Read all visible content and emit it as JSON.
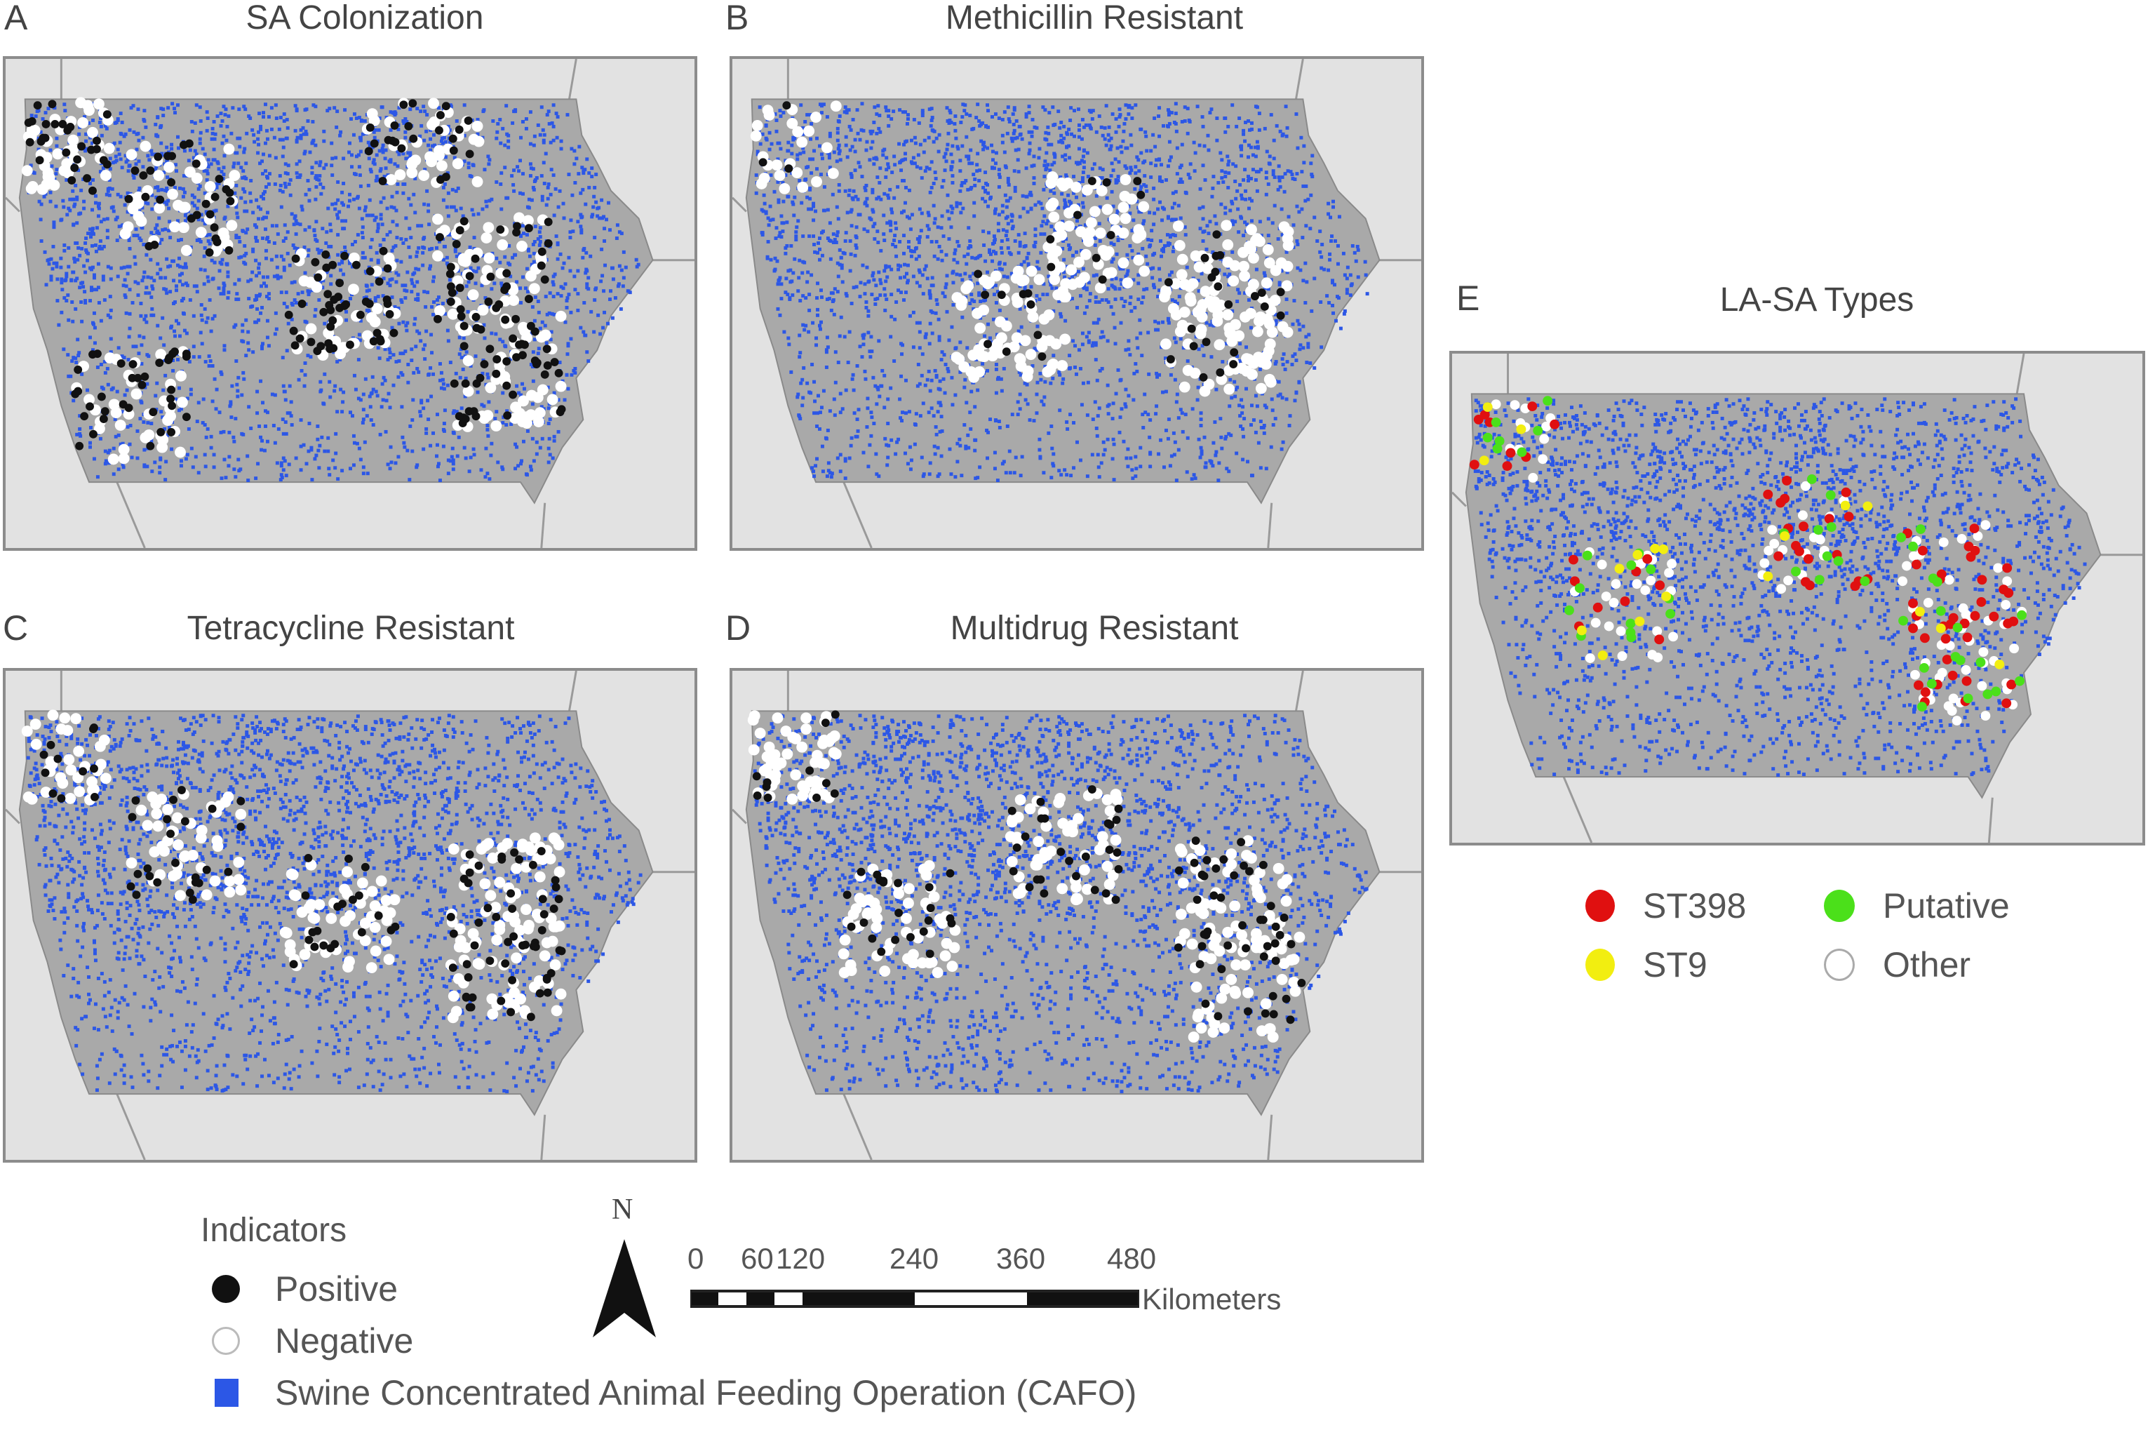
{
  "panels": [
    {
      "id": "A",
      "letter": "A",
      "title": "SA Colonization"
    },
    {
      "id": "B",
      "letter": "B",
      "title": "Methicillin Resistant"
    },
    {
      "id": "C",
      "letter": "C",
      "title": "Tetracycline Resistant"
    },
    {
      "id": "D",
      "letter": "D",
      "title": "Multidrug Resistant"
    },
    {
      "id": "E",
      "letter": "E",
      "title": "LA-SA Types"
    }
  ],
  "legend_indicators": {
    "title": "Indicators",
    "items": [
      {
        "label": "Positive",
        "color": "#111111"
      },
      {
        "label": "Negative",
        "color": "#ffffff"
      },
      {
        "label": "Swine Concentrated Animal Feeding Operation (CAFO)",
        "color": "#2c57e6"
      }
    ]
  },
  "legend_types": {
    "items": [
      {
        "label": "ST398",
        "color": "#e01010"
      },
      {
        "label": "Putative",
        "color": "#4be01a"
      },
      {
        "label": "ST9",
        "color": "#f2ee10"
      },
      {
        "label": "Other",
        "color": "#ffffff"
      }
    ]
  },
  "north_arrow": {
    "label": "N"
  },
  "scale_bar": {
    "ticks": [
      "0",
      "60",
      "120",
      "240",
      "360",
      "480"
    ],
    "unit": "Kilometers"
  },
  "colors": {
    "background_land": "#e2e2e2",
    "iowa_fill": "#a9a9a9",
    "cafo": "#2c57e6",
    "positive": "#111111",
    "negative": "#ffffff",
    "frame_border": "#8c8c8c"
  }
}
